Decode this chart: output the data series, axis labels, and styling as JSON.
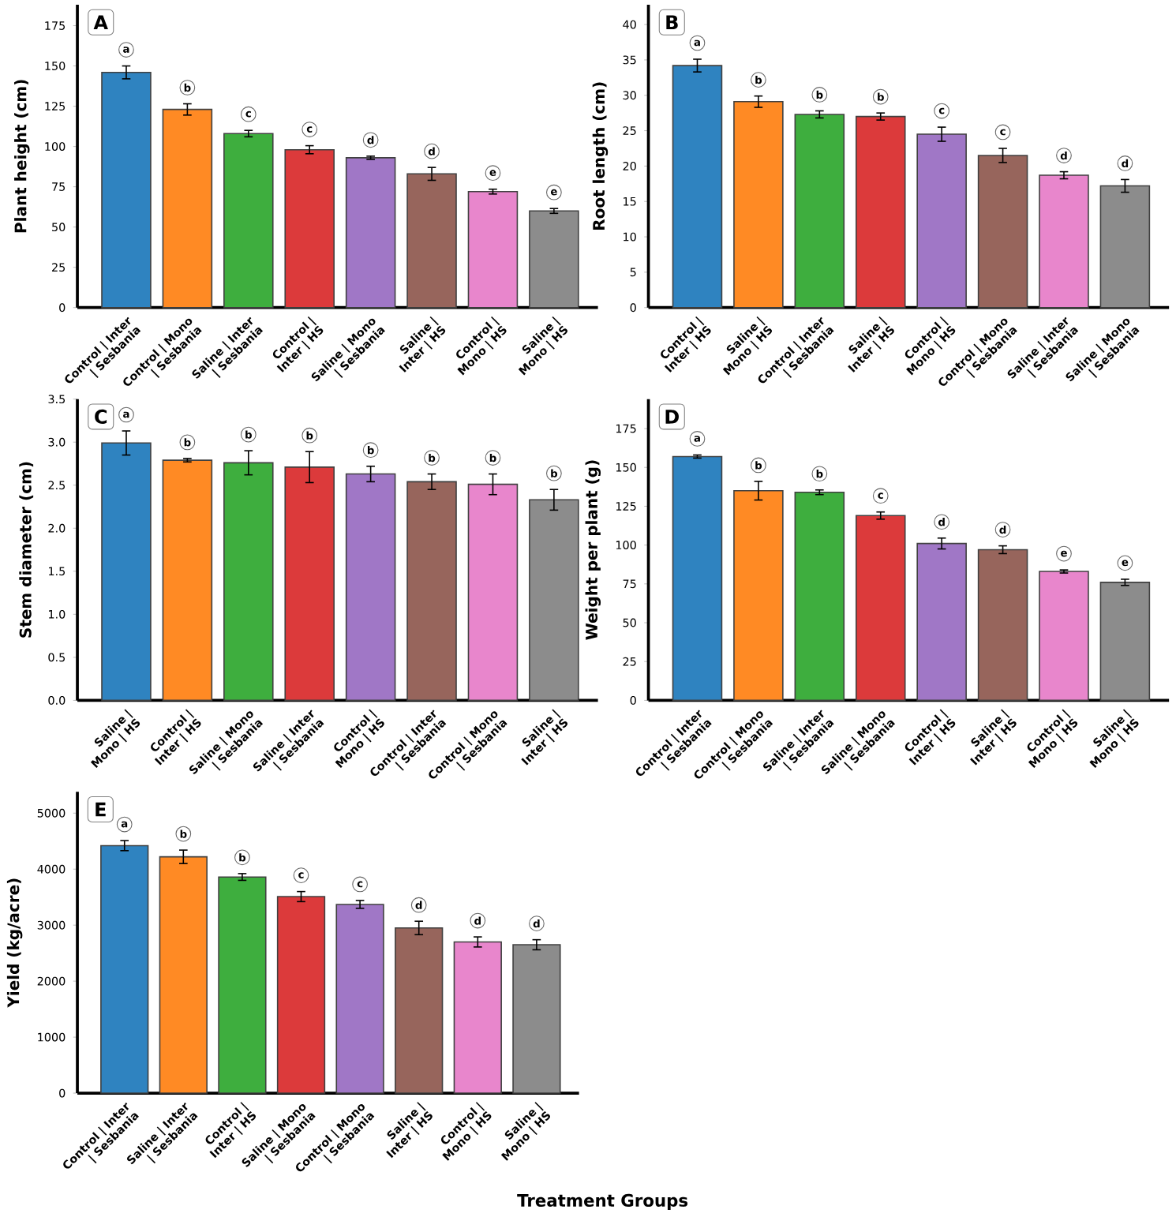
{
  "chart_data": [
    {
      "type": "bar",
      "title": "A",
      "ylabel": "Plant height (cm)",
      "categories": [
        "Control | Inter | Sesbania",
        "Control | Mono | Sesbania",
        "Saline | Inter | Sesbania",
        "Control | Inter | HS",
        "Saline | Mono | Sesbania",
        "Saline | Inter | HS",
        "Control | Mono | HS",
        "Saline | Mono | HS"
      ],
      "values": [
        146,
        123,
        108,
        98,
        93,
        83,
        72,
        60
      ],
      "errors": [
        4,
        3.5,
        2,
        2.5,
        1,
        4,
        1.5,
        1.5
      ],
      "colors": [
        "#2f83c0",
        "#ff8a24",
        "#3eae3e",
        "#dc3a3b",
        "#a077c6",
        "#97655c",
        "#e886cc",
        "#8c8c8c"
      ],
      "ylim": [
        0,
        188
      ],
      "yticks": [
        0,
        25,
        50,
        75,
        100,
        125,
        150,
        175
      ],
      "annotations": [
        "a",
        "b",
        "c",
        "c",
        "d",
        "d",
        "e",
        "e"
      ]
    },
    {
      "type": "bar",
      "title": "B",
      "ylabel": "Root length (cm)",
      "categories": [
        "Control | Inter | HS",
        "Saline | Mono | HS",
        "Control | Inter | Sesbania",
        "Saline | Inter | HS",
        "Control | Mono | HS",
        "Control | Mono | Sesbania",
        "Saline | Inter | Sesbania",
        "Saline | Mono | Sesbania"
      ],
      "values": [
        34.2,
        29.1,
        27.3,
        27.0,
        24.5,
        21.5,
        18.7,
        17.2
      ],
      "errors": [
        0.9,
        0.8,
        0.5,
        0.5,
        1.0,
        1.0,
        0.5,
        0.9
      ],
      "colors": [
        "#2f83c0",
        "#ff8a24",
        "#3eae3e",
        "#dc3a3b",
        "#a077c6",
        "#97655c",
        "#e886cc",
        "#8c8c8c"
      ],
      "ylim": [
        0,
        42.8
      ],
      "yticks": [
        0,
        5,
        10,
        15,
        20,
        25,
        30,
        35,
        40
      ],
      "annotations": [
        "a",
        "b",
        "b",
        "b",
        "c",
        "c",
        "d",
        "d"
      ]
    },
    {
      "type": "bar",
      "title": "C",
      "ylabel": "Stem diameter (cm)",
      "categories": [
        "Saline | Mono | HS",
        "Control | Inter | HS",
        "Saline | Mono | Sesbania",
        "Saline | Inter | Sesbania",
        "Control | Mono | HS",
        "Control | Inter | Sesbania",
        "Control | Mono | Sesbania",
        "Saline | Inter | HS"
      ],
      "values": [
        2.99,
        2.79,
        2.76,
        2.71,
        2.63,
        2.54,
        2.51,
        2.33
      ],
      "errors": [
        0.14,
        0.02,
        0.14,
        0.18,
        0.09,
        0.09,
        0.12,
        0.12
      ],
      "colors": [
        "#2f83c0",
        "#ff8a24",
        "#3eae3e",
        "#dc3a3b",
        "#a077c6",
        "#97655c",
        "#e886cc",
        "#8c8c8c"
      ],
      "ylim": [
        0,
        3.5
      ],
      "yticks": [
        {
          "value": 0,
          "label": "0.0"
        },
        {
          "value": 0.5,
          "label": "0.5"
        },
        {
          "value": 1,
          "label": "1.0"
        },
        {
          "value": 1.5,
          "label": "1.5"
        },
        {
          "value": 2,
          "label": "2.0"
        },
        {
          "value": 2.5,
          "label": "2.5"
        },
        {
          "value": 3,
          "label": "3.0"
        },
        {
          "value": 3.5,
          "label": "3.5"
        }
      ],
      "annotations": [
        "a",
        "b",
        "b",
        "b",
        "b",
        "b",
        "b",
        "b"
      ]
    },
    {
      "type": "bar",
      "title": "D",
      "ylabel": "Weight per plant (g)",
      "categories": [
        "Control | Inter | Sesbania",
        "Control | Mono | Sesbania",
        "Saline | Inter | Sesbania",
        "Saline | Mono | Sesbania",
        "Control | Inter | HS",
        "Saline | Inter | HS",
        "Control | Mono | HS",
        "Saline | Mono | HS"
      ],
      "values": [
        157,
        135,
        134,
        119,
        101,
        97,
        83,
        76
      ],
      "errors": [
        1,
        6,
        1.5,
        2.3,
        3.5,
        2.5,
        1,
        2
      ],
      "colors": [
        "#2f83c0",
        "#ff8a24",
        "#3eae3e",
        "#dc3a3b",
        "#a077c6",
        "#97655c",
        "#e886cc",
        "#8c8c8c"
      ],
      "ylim": [
        0,
        194
      ],
      "yticks": [
        0,
        25,
        50,
        75,
        100,
        125,
        150,
        175
      ],
      "annotations": [
        "a",
        "b",
        "b",
        "c",
        "d",
        "d",
        "e",
        "e"
      ]
    },
    {
      "type": "bar",
      "title": "E",
      "ylabel": "Yield (kg/acre)",
      "xlabel": "Treatment Groups",
      "categories": [
        "Control | Inter | Sesbania",
        "Saline | Inter | Sesbania",
        "Control | Inter | HS",
        "Saline | Mono | Sesbania",
        "Control | Mono | Sesbania",
        "Saline | Inter | HS",
        "Control | Mono | HS",
        "Saline | Mono | HS"
      ],
      "values": [
        4420,
        4220,
        3860,
        3510,
        3370,
        2950,
        2700,
        2650
      ],
      "errors": [
        90,
        120,
        60,
        90,
        70,
        120,
        90,
        90
      ],
      "colors": [
        "#2f83c0",
        "#ff8a24",
        "#3eae3e",
        "#dc3a3b",
        "#a077c6",
        "#97655c",
        "#e886cc",
        "#8c8c8c"
      ],
      "ylim": [
        0,
        5380
      ],
      "yticks": [
        0,
        1000,
        2000,
        3000,
        4000,
        5000
      ],
      "annotations": [
        "a",
        "b",
        "b",
        "c",
        "c",
        "d",
        "d",
        "d"
      ]
    }
  ]
}
